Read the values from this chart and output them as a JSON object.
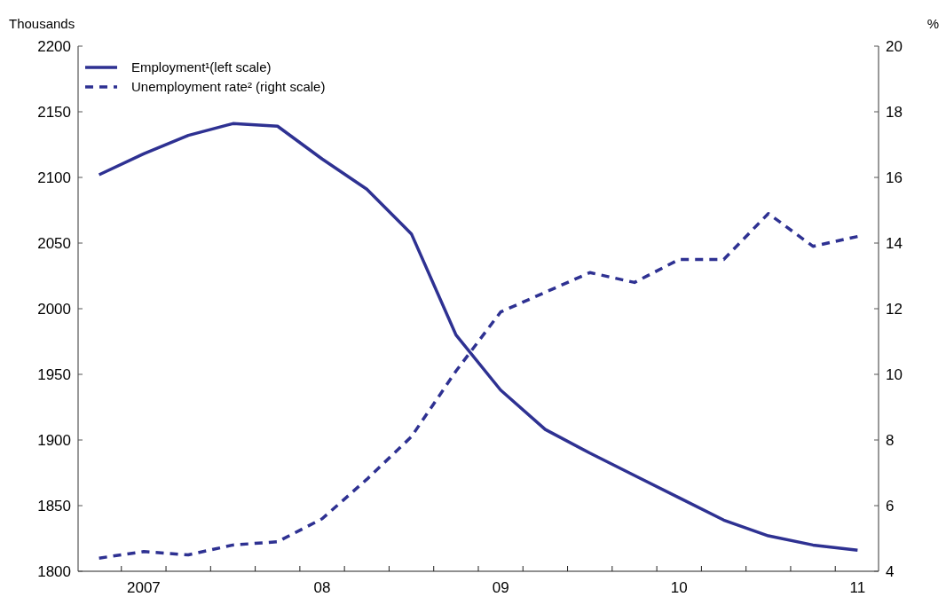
{
  "chart_data": {
    "type": "line",
    "categories": [
      null,
      "2007",
      null,
      null,
      null,
      "08",
      null,
      null,
      null,
      "09",
      null,
      null,
      null,
      "10",
      null,
      null,
      null,
      "11"
    ],
    "series": [
      {
        "name": "Employment¹(left scale)",
        "color": "#2e3192",
        "line_style": "solid",
        "values": [
          2102,
          2118,
          2132,
          2141,
          2139,
          2114,
          2091,
          2057,
          1980,
          1938,
          1908,
          1890,
          1873,
          1856,
          1839,
          1827,
          1820,
          1816
        ]
      },
      {
        "name": "Unemployment rate² (right scale)",
        "color": "#2e3192",
        "line_style": "dashed",
        "axis": "y2",
        "values": [
          4.4,
          4.6,
          4.5,
          4.8,
          4.9,
          5.6,
          6.8,
          8.1,
          10.1,
          11.9,
          12.5,
          13.1,
          12.8,
          13.5,
          13.5,
          14.9,
          13.9,
          14.2
        ]
      }
    ],
    "ylabel": "Thousands",
    "y2label": "%",
    "ylim": [
      1800,
      2200
    ],
    "yticks": [
      1800,
      1850,
      1900,
      1950,
      2000,
      2050,
      2100,
      2150,
      2200
    ],
    "y2lim": [
      4,
      20
    ],
    "y2ticks": [
      4,
      6,
      8,
      10,
      12,
      14,
      16,
      18,
      20
    ],
    "grid": false,
    "legend": "top left",
    "marker": "none"
  }
}
